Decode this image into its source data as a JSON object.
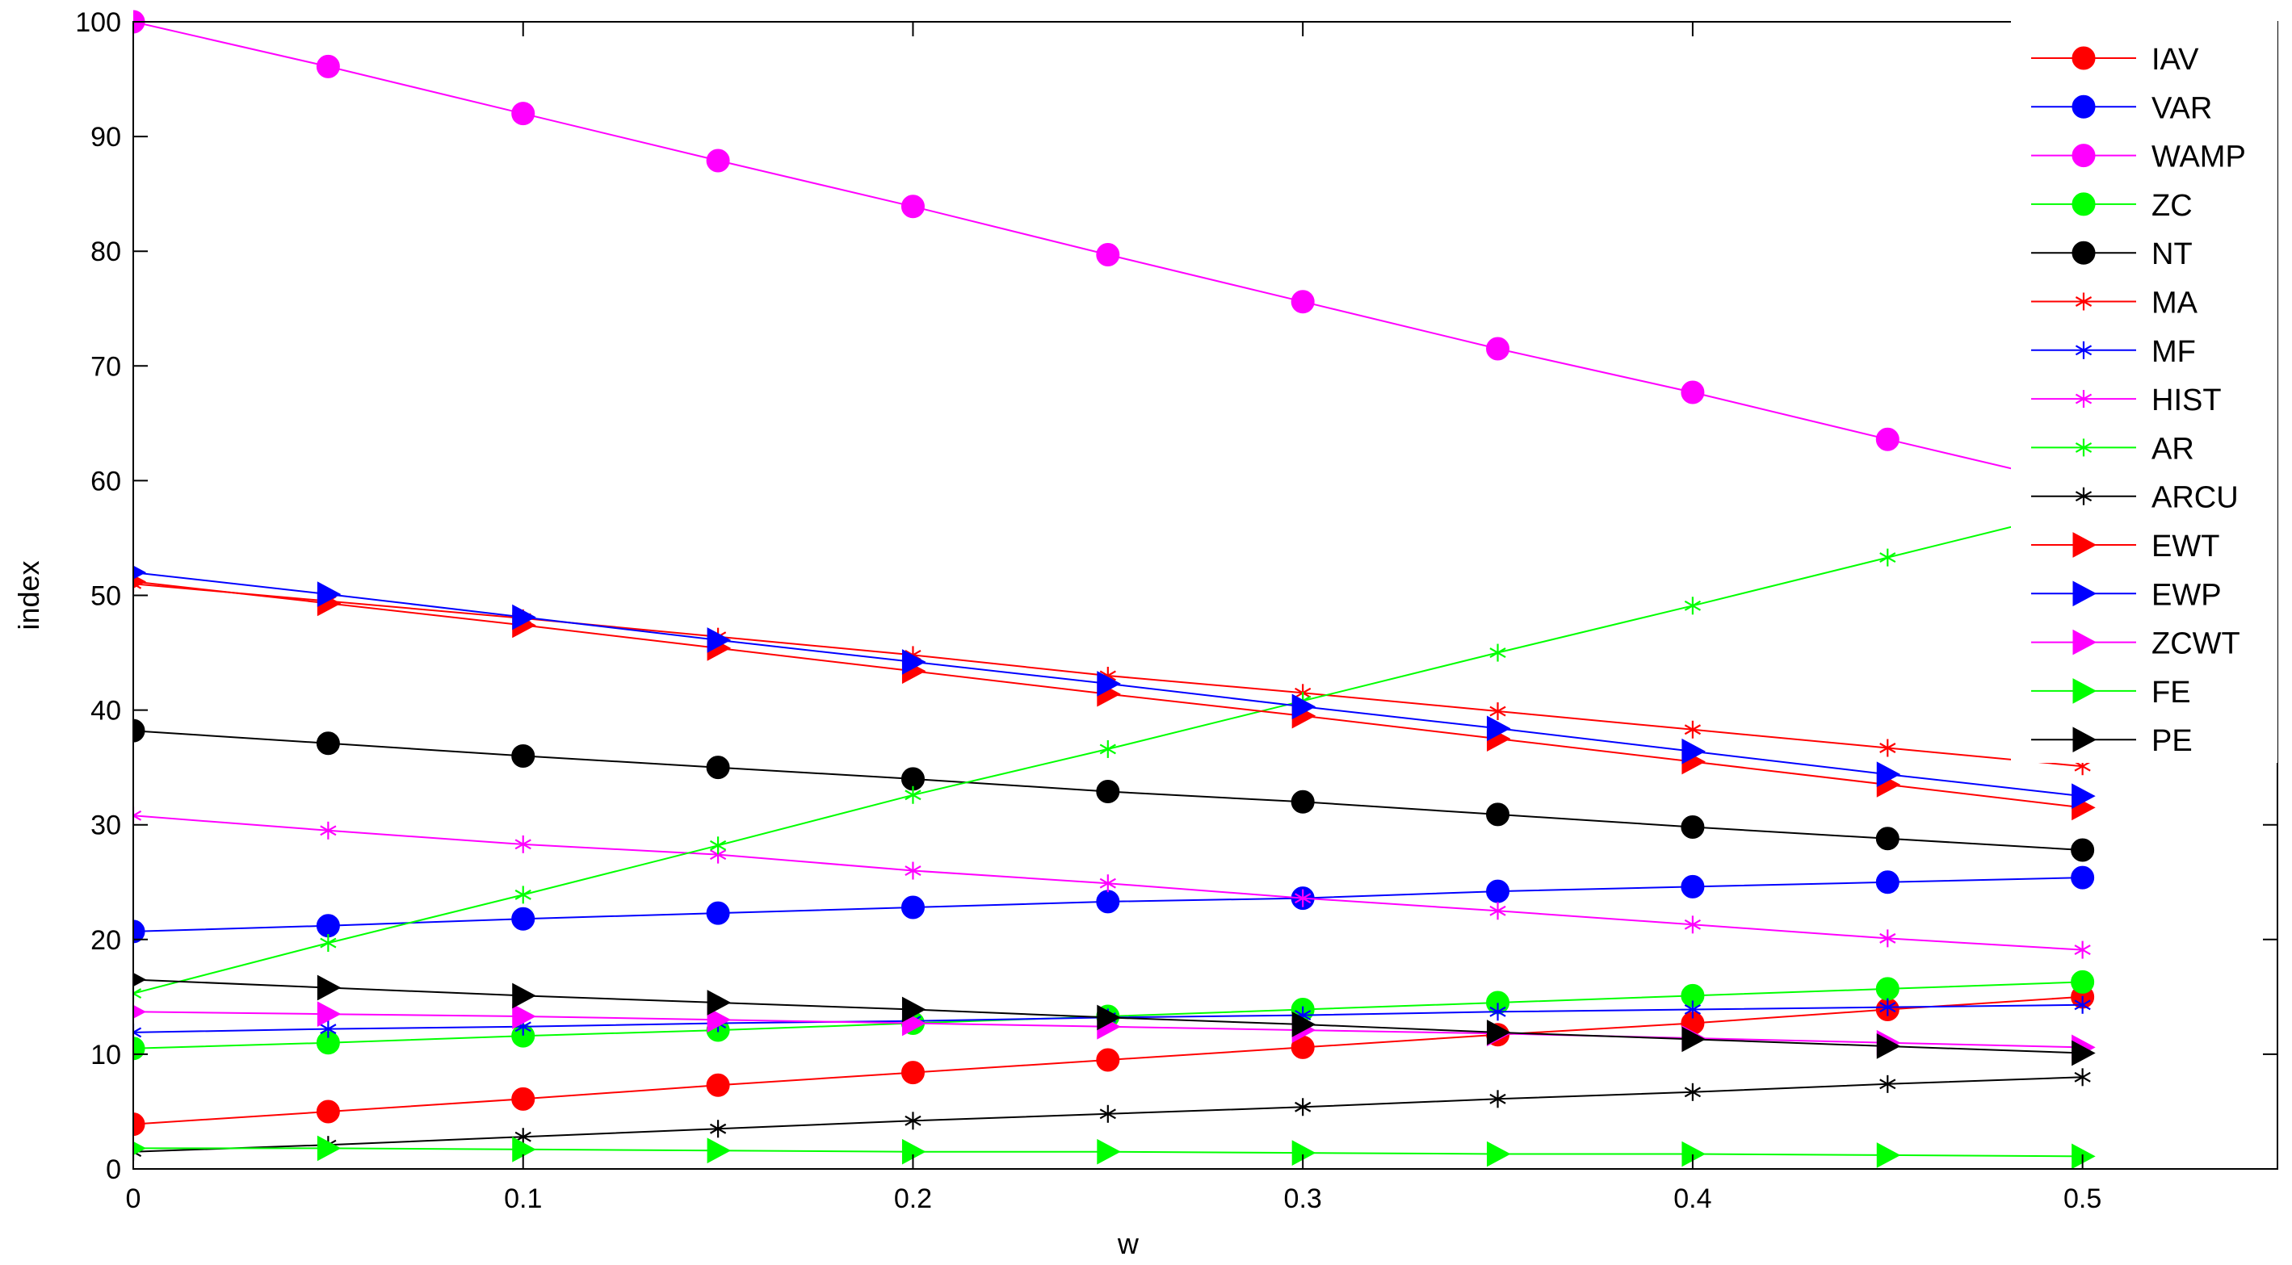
{
  "chart_data": {
    "type": "line",
    "title": "",
    "xlabel": "w",
    "ylabel": "index",
    "xlim": [
      0,
      0.55
    ],
    "ylim": [
      0,
      100
    ],
    "x_ticks": [
      "0",
      "0.1",
      "0.2",
      "0.3",
      "0.4",
      "0.5"
    ],
    "y_ticks": [
      "0",
      "10",
      "20",
      "30",
      "40",
      "50",
      "60",
      "70",
      "80",
      "90",
      "100"
    ],
    "grid": false,
    "legend_position": "top-right",
    "x": [
      0,
      0.05,
      0.1,
      0.15,
      0.2,
      0.25,
      0.3,
      0.35,
      0.4,
      0.45,
      0.5
    ],
    "series": [
      {
        "name": "IAV",
        "color": "#ff0000",
        "marker": "circle",
        "values": [
          3.9,
          5.0,
          6.1,
          7.3,
          8.4,
          9.5,
          10.6,
          11.7,
          12.7,
          13.9,
          15.0
        ]
      },
      {
        "name": "VAR",
        "color": "#0000ff",
        "marker": "circle",
        "values": [
          20.7,
          21.2,
          21.8,
          22.3,
          22.8,
          23.3,
          23.6,
          24.2,
          24.6,
          25.0,
          25.4
        ]
      },
      {
        "name": "WAMP",
        "color": "#ff00ff",
        "marker": "circle",
        "values": [
          100,
          96.1,
          92.0,
          87.9,
          83.9,
          79.7,
          75.6,
          71.5,
          67.7,
          63.6,
          59.6
        ]
      },
      {
        "name": "ZC",
        "color": "#00ff00",
        "marker": "circle",
        "values": [
          10.5,
          11.0,
          11.6,
          12.1,
          12.7,
          13.3,
          13.9,
          14.5,
          15.1,
          15.7,
          16.3
        ]
      },
      {
        "name": "NT",
        "color": "#000000",
        "marker": "circle",
        "values": [
          38.2,
          37.1,
          36.0,
          35.0,
          34.0,
          32.9,
          32.0,
          30.9,
          29.8,
          28.8,
          27.8
        ]
      },
      {
        "name": "MA",
        "color": "#ff0000",
        "marker": "asterisk",
        "values": [
          51.0,
          49.5,
          48.0,
          46.4,
          44.8,
          43.0,
          41.5,
          39.9,
          38.3,
          36.7,
          35.1
        ]
      },
      {
        "name": "MF",
        "color": "#0000ff",
        "marker": "asterisk",
        "values": [
          11.9,
          12.2,
          12.4,
          12.7,
          12.9,
          13.2,
          13.4,
          13.7,
          13.9,
          14.1,
          14.3
        ]
      },
      {
        "name": "HIST",
        "color": "#ff00ff",
        "marker": "asterisk",
        "values": [
          30.8,
          29.5,
          28.3,
          27.4,
          26.0,
          24.9,
          23.6,
          22.5,
          21.3,
          20.1,
          19.1
        ]
      },
      {
        "name": "AR",
        "color": "#00ff00",
        "marker": "asterisk",
        "values": [
          15.3,
          19.7,
          23.9,
          28.2,
          32.6,
          36.6,
          40.8,
          45.0,
          49.1,
          53.3,
          57.5
        ]
      },
      {
        "name": "ARCU",
        "color": "#000000",
        "marker": "asterisk",
        "values": [
          1.5,
          2.1,
          2.8,
          3.5,
          4.2,
          4.8,
          5.4,
          6.1,
          6.7,
          7.4,
          8.0
        ]
      },
      {
        "name": "EWT",
        "color": "#ff0000",
        "marker": "triangle",
        "values": [
          51.2,
          49.3,
          47.4,
          45.4,
          43.4,
          41.4,
          39.5,
          37.5,
          35.5,
          33.5,
          31.5
        ]
      },
      {
        "name": "EWP",
        "color": "#0000ff",
        "marker": "triangle",
        "values": [
          52.0,
          50.1,
          48.1,
          46.1,
          44.2,
          42.3,
          40.3,
          38.4,
          36.4,
          34.4,
          32.5
        ]
      },
      {
        "name": "ZCWT",
        "color": "#ff00ff",
        "marker": "triangle",
        "values": [
          13.7,
          13.5,
          13.3,
          13.0,
          12.7,
          12.4,
          12.1,
          11.8,
          11.4,
          11.0,
          10.6
        ]
      },
      {
        "name": "FE",
        "color": "#00ff00",
        "marker": "triangle",
        "values": [
          1.8,
          1.8,
          1.7,
          1.6,
          1.5,
          1.5,
          1.4,
          1.3,
          1.3,
          1.2,
          1.1
        ]
      },
      {
        "name": "PE",
        "color": "#000000",
        "marker": "triangle",
        "values": [
          16.5,
          15.8,
          15.1,
          14.5,
          13.9,
          13.2,
          12.6,
          11.9,
          11.3,
          10.7,
          10.1
        ]
      }
    ]
  }
}
